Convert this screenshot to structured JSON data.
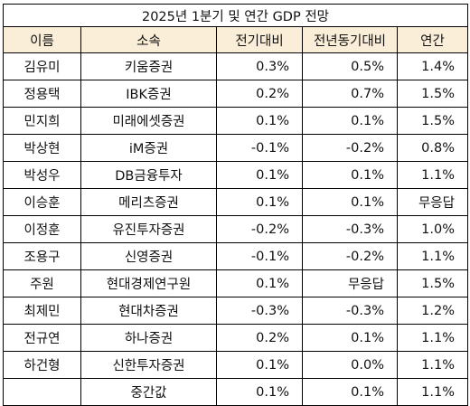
{
  "title": "2025년 1분기 및 연간 GDP 전망",
  "columns": [
    "이름",
    "소속",
    "전기대비",
    "전년동기대비",
    "연간"
  ],
  "rows": [
    {
      "name": "김유미",
      "firm": "키움증권",
      "qoq": "0.3%",
      "yoy": "0.5%",
      "annual": "1.4%"
    },
    {
      "name": "정용택",
      "firm": "IBK증권",
      "qoq": "0.2%",
      "yoy": "0.7%",
      "annual": "1.5%"
    },
    {
      "name": "민지희",
      "firm": "미래에셋증권",
      "qoq": "0.1%",
      "yoy": "0.1%",
      "annual": "1.5%"
    },
    {
      "name": "박상현",
      "firm": "iM증권",
      "qoq": "-0.1%",
      "yoy": "-0.2%",
      "annual": "0.8%"
    },
    {
      "name": "박성우",
      "firm": "DB금융투자",
      "qoq": "0.1%",
      "yoy": "0.1%",
      "annual": "1.1%"
    },
    {
      "name": "이승훈",
      "firm": "메리츠증권",
      "qoq": "0.1%",
      "yoy": "0.1%",
      "annual": "무응답"
    },
    {
      "name": "이정훈",
      "firm": "유진투자증권",
      "qoq": "-0.2%",
      "yoy": "-0.3%",
      "annual": "1.0%"
    },
    {
      "name": "조용구",
      "firm": "신영증권",
      "qoq": "-0.1%",
      "yoy": "-0.2%",
      "annual": "1.1%"
    },
    {
      "name": "주원",
      "firm": "현대경제연구원",
      "qoq": "0.1%",
      "yoy": "무응답",
      "annual": "1.5%"
    },
    {
      "name": "최제민",
      "firm": "현대차증권",
      "qoq": "-0.3%",
      "yoy": "-0.3%",
      "annual": "1.2%"
    },
    {
      "name": "전규연",
      "firm": "하나증권",
      "qoq": "0.2%",
      "yoy": "0.1%",
      "annual": "1.1%"
    },
    {
      "name": "하건형",
      "firm": "신한투자증권",
      "qoq": "0.1%",
      "yoy": "0.0%",
      "annual": "1.1%"
    }
  ],
  "median": {
    "label": "중간값",
    "qoq": "0.1%",
    "yoy": "0.1%",
    "annual": "1.1%"
  }
}
